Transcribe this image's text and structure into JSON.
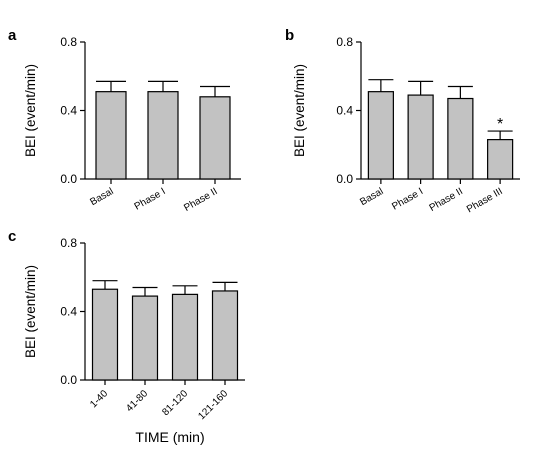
{
  "chart_data": [
    {
      "type": "bar",
      "panel": "a",
      "categories": [
        "Basal",
        "Phase I",
        "Phase II"
      ],
      "values": [
        0.51,
        0.51,
        0.48
      ],
      "errors": [
        0.06,
        0.06,
        0.06
      ],
      "ylabel": "BEI (event/min)",
      "xlabel": "",
      "ylim": [
        0,
        0.8
      ],
      "yticks": [
        "0.0",
        "0.4",
        "0.8"
      ],
      "annotations": []
    },
    {
      "type": "bar",
      "panel": "b",
      "categories": [
        "Basal",
        "Phase I",
        "Phase II",
        "Phase III"
      ],
      "values": [
        0.51,
        0.49,
        0.47,
        0.23
      ],
      "errors": [
        0.07,
        0.08,
        0.07,
        0.05
      ],
      "ylabel": "BEI (event/min)",
      "xlabel": "",
      "ylim": [
        0,
        0.8
      ],
      "yticks": [
        "0.0",
        "0.4",
        "0.8"
      ],
      "annotations": [
        {
          "category": "Phase III",
          "text": "*"
        }
      ]
    },
    {
      "type": "bar",
      "panel": "c",
      "categories": [
        "1-40",
        "41-80",
        "81-120",
        "121-160"
      ],
      "values": [
        0.53,
        0.49,
        0.5,
        0.52
      ],
      "errors": [
        0.05,
        0.05,
        0.05,
        0.05
      ],
      "ylabel": "BEI (event/min)",
      "xlabel": "TIME (min)",
      "ylim": [
        0,
        0.8
      ],
      "yticks": [
        "0.0",
        "0.4",
        "0.8"
      ],
      "annotations": []
    }
  ]
}
